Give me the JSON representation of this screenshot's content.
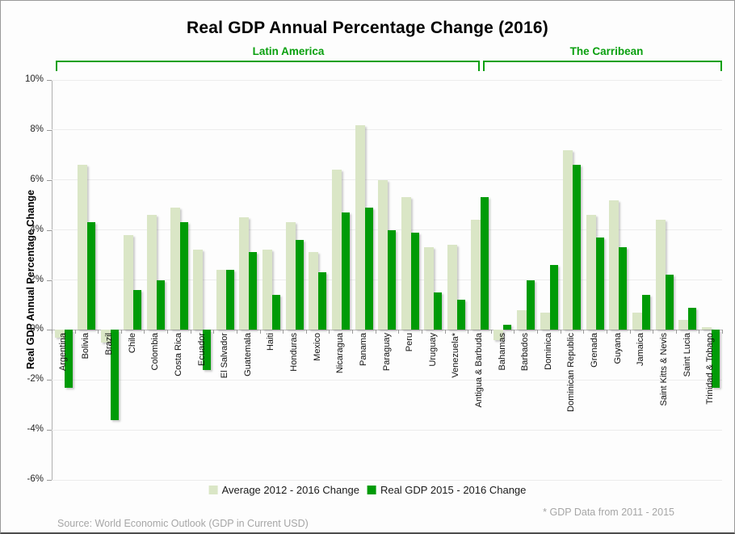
{
  "title": "Real GDP Annual Percentage Change (2016)",
  "groups": [
    {
      "label": "Latin America",
      "countries": 18
    },
    {
      "label": "The Carribean",
      "countries": 11
    }
  ],
  "y_axis": {
    "title": "Real GDP Annual Percentage Change",
    "ticks": [
      "10%",
      "8%",
      "6%",
      "4%",
      "2%",
      "0%",
      "-2%",
      "-4%",
      "-6%"
    ],
    "step": 2
  },
  "legend": [
    {
      "label": "Average 2012 - 2016 Change",
      "color": "#dae6c6"
    },
    {
      "label": "Real GDP 2015 - 2016 Change",
      "color": "#009b07"
    }
  ],
  "footnote": "* GDP Data from 2011 - 2015",
  "source": "Source: World Economic Outlook (GDP in Current USD)",
  "colors": {
    "avg_bar": "#dae6c6",
    "gdp_bar": "#009b07",
    "group_green": "#0aa00f",
    "grid": "#ececec",
    "note_gray": "#a6a6a6"
  },
  "chart_data": {
    "type": "bar",
    "title": "Real GDP Annual Percentage Change (2016)",
    "ylabel": "Real GDP Annual Percentage Change",
    "ylim": [
      -6,
      10
    ],
    "grid": true,
    "legend_position": "bottom",
    "categories": [
      "Argentina",
      "Bolivia",
      "Brazil",
      "Chile",
      "Colombia",
      "Costa Rica",
      "Ecuador",
      "El Salvador",
      "Guatemala",
      "Haiti",
      "Honduras",
      "Mexico",
      "Nicaragua",
      "Panama",
      "Paraguay",
      "Peru",
      "Uruguay",
      "Venezuela*",
      "Antigua & Barbuda",
      "Bahamas",
      "Barbados",
      "Dominica",
      "Dominican Republic",
      "Grenada",
      "Guyana",
      "Jamaica",
      "Saint Kitts & Nevis",
      "Saint Lucia",
      "Trinidad & Tobago"
    ],
    "group_of_category": [
      "Latin America",
      "Latin America",
      "Latin America",
      "Latin America",
      "Latin America",
      "Latin America",
      "Latin America",
      "Latin America",
      "Latin America",
      "Latin America",
      "Latin America",
      "Latin America",
      "Latin America",
      "Latin America",
      "Latin America",
      "Latin America",
      "Latin America",
      "Latin America",
      "The Carribean",
      "The Carribean",
      "The Carribean",
      "The Carribean",
      "The Carribean",
      "The Carribean",
      "The Carribean",
      "The Carribean",
      "The Carribean",
      "The Carribean",
      "The Carribean"
    ],
    "series": [
      {
        "name": "Average 2012 - 2016 Change",
        "values": [
          -0.3,
          6.6,
          -0.5,
          3.8,
          4.6,
          4.9,
          3.2,
          2.4,
          4.5,
          3.2,
          4.3,
          3.1,
          6.4,
          8.2,
          6.0,
          5.3,
          3.3,
          3.4,
          4.4,
          -0.4,
          0.8,
          0.7,
          7.2,
          4.6,
          5.2,
          0.7,
          4.4,
          0.4,
          0.1
        ]
      },
      {
        "name": "Real GDP 2015 - 2016 Change",
        "values": [
          -2.3,
          4.3,
          -3.6,
          1.6,
          2.0,
          4.3,
          -1.6,
          2.4,
          3.1,
          1.4,
          3.6,
          2.3,
          4.7,
          4.9,
          4.0,
          3.9,
          1.5,
          1.2,
          5.3,
          0.2,
          2.0,
          2.6,
          6.6,
          3.7,
          3.3,
          1.4,
          2.2,
          0.9,
          -2.3
        ]
      }
    ]
  }
}
